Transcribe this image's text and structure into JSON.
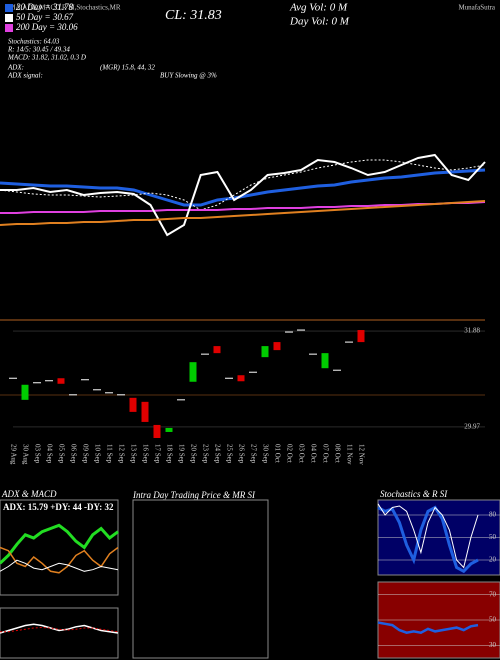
{
  "header": {
    "left": "EMA,ADX,MACD,R SI,Stochastics,MR",
    "right": "MunafaSutra"
  },
  "chart_data": [
    {
      "type": "line",
      "title": "CL: 31.83",
      "annotations": [
        "Stochastics: 64.03",
        "R: 14/5: 30.45 / 49.34",
        "MACD: 31.82, 31.02, 0.3 D",
        "ADX:",
        "(MGR) 15.8, 44, 32",
        "ADX signal:",
        "BUY Slowing @ 3%",
        "Avg Vol: 0 M",
        "Day Vol: 0 M"
      ],
      "ylim": [
        29.7,
        32.7
      ],
      "series": [
        {
          "name": "20 Day = 31.78",
          "color": "#1f5fe0",
          "width": 3,
          "values": [
            30.87,
            30.86,
            30.85,
            30.84,
            30.84,
            30.83,
            30.82,
            30.82,
            30.8,
            30.75,
            30.7,
            30.65,
            30.65,
            30.7,
            30.72,
            30.75,
            30.78,
            30.8,
            30.82,
            30.84,
            30.85,
            30.88,
            30.9,
            30.92,
            30.93,
            30.95,
            30.97,
            30.98,
            30.99,
            31.0
          ]
        },
        {
          "name": "50 Day = 30.67",
          "color": "#ffffff",
          "width": 1,
          "style": "dotted",
          "values": [
            30.8,
            30.78,
            30.76,
            30.75,
            30.75,
            30.74,
            30.73,
            30.74,
            30.75,
            30.77,
            30.75,
            30.7,
            30.6,
            30.65,
            30.75,
            30.85,
            30.92,
            30.95,
            30.98,
            31.02,
            31.05,
            31.08,
            31.1,
            31.1,
            31.08,
            31.05,
            31.02,
            31.0,
            31.02,
            31.05
          ]
        },
        {
          "name": "200 Day = 30.06",
          "color": "#e040e0",
          "width": 2,
          "values": [
            30.57,
            30.57,
            30.58,
            30.58,
            30.58,
            30.58,
            30.59,
            30.59,
            30.59,
            30.59,
            30.6,
            30.6,
            30.6,
            30.6,
            30.61,
            30.61,
            30.62,
            30.62,
            30.62,
            30.63,
            30.63,
            30.64,
            30.64,
            30.65,
            30.65,
            30.66,
            30.66,
            30.67,
            30.67,
            30.68
          ]
        },
        {
          "color": "#ffffff",
          "width": 2,
          "values": [
            30.8,
            30.8,
            30.82,
            30.78,
            30.8,
            30.75,
            30.77,
            30.78,
            30.76,
            30.65,
            30.35,
            30.45,
            30.95,
            30.98,
            30.7,
            30.8,
            30.95,
            30.97,
            31.0,
            31.1,
            31.08,
            31.02,
            30.95,
            30.98,
            31.05,
            31.12,
            31.15,
            30.95,
            30.9,
            31.08
          ]
        },
        {
          "color": "#e08020",
          "width": 2,
          "values": [
            30.45,
            30.46,
            30.46,
            30.47,
            30.47,
            30.48,
            30.48,
            30.49,
            30.5,
            30.5,
            30.51,
            30.52,
            30.52,
            30.53,
            30.54,
            30.55,
            30.56,
            30.57,
            30.58,
            30.59,
            30.6,
            30.61,
            30.62,
            30.63,
            30.64,
            30.65,
            30.66,
            30.67,
            30.68,
            30.69
          ]
        }
      ]
    },
    {
      "type": "candlestick",
      "ylim": [
        29.71,
        32.1
      ],
      "yticks": [
        29.97,
        31.88
      ],
      "up_color": "#00cc00",
      "down_color": "#e00000",
      "categories": [
        "29 Aug",
        "30 Aug",
        "03 Sep",
        "04 Sep",
        "05 Sep",
        "06 Sep",
        "09 Sep",
        "10 Sep",
        "11 Sep",
        "12 Sep",
        "13 Sep",
        "16 Sep",
        "17 Sep",
        "18 Sep",
        "19 Sep",
        "20 Sep",
        "23 Sep",
        "24 Sep",
        "25 Sep",
        "26 Sep",
        "27 Sep",
        "30 Sep",
        "01 Oct",
        "02 Oct",
        "03 Oct",
        "04 Oct",
        "07 Oct",
        "08 Oct",
        "11 Nov",
        "12 Nov"
      ],
      "open": [
        30.94,
        30.51,
        30.85,
        30.89,
        30.94,
        30.61,
        30.91,
        30.71,
        30.65,
        30.61,
        30.55,
        30.47,
        30.01,
        29.87,
        30.51,
        30.87,
        31.42,
        31.58,
        30.94,
        31.0,
        31.06,
        31.36,
        31.66,
        31.86,
        31.9,
        31.42,
        31.14,
        31.1,
        31.66,
        31.9
      ],
      "close": [
        30.94,
        30.81,
        30.85,
        30.89,
        30.83,
        30.61,
        30.91,
        30.71,
        30.65,
        30.61,
        30.27,
        30.07,
        29.75,
        29.95,
        30.51,
        31.26,
        31.42,
        31.44,
        30.94,
        30.88,
        31.06,
        31.58,
        31.5,
        31.86,
        31.9,
        31.42,
        31.44,
        31.1,
        31.66,
        31.66
      ]
    },
    {
      "type": "line",
      "title": "ADX & MACD",
      "label": "ADX: 15.79 +DY: 44 -DY: 32",
      "ylim": [
        0,
        60
      ],
      "series": [
        {
          "color": "#22dd22",
          "width": 3,
          "values": [
            20,
            25,
            32,
            38,
            36,
            40,
            42,
            44,
            40,
            34,
            30,
            38,
            42,
            36,
            40
          ]
        },
        {
          "color": "#e08020",
          "width": 1.5,
          "values": [
            30,
            28,
            20,
            18,
            24,
            20,
            15,
            14,
            18,
            25,
            28,
            22,
            18,
            26,
            30
          ]
        },
        {
          "color": "#ffffff",
          "width": 1,
          "values": [
            15,
            18,
            22,
            20,
            17,
            16,
            18,
            20,
            19,
            17,
            15,
            16,
            18,
            17,
            16
          ]
        }
      ]
    },
    {
      "type": "line",
      "ylim": [
        -1,
        1
      ],
      "series": [
        {
          "color": "#ffffff",
          "width": 1.5,
          "values": [
            0.0,
            0.1,
            0.2,
            0.3,
            0.35,
            0.3,
            0.2,
            0.1,
            0.15,
            0.25,
            0.3,
            0.2,
            0.1,
            0.05,
            0.0
          ]
        },
        {
          "color": "#e00000",
          "width": 1,
          "style": "dotted",
          "values": [
            0.05,
            0.05,
            0.1,
            0.15,
            0.2,
            0.22,
            0.2,
            0.15,
            0.12,
            0.15,
            0.2,
            0.2,
            0.15,
            0.1,
            0.05
          ]
        }
      ]
    },
    {
      "type": "line",
      "title": "Stochastics & R SI",
      "ylim": [
        0,
        100
      ],
      "yticks": [
        20,
        50,
        80
      ],
      "background": "#000066",
      "series": [
        {
          "color": "#1f5fe0",
          "width": 3,
          "values": [
            90,
            85,
            88,
            70,
            40,
            20,
            60,
            85,
            90,
            75,
            40,
            10,
            5,
            15,
            20
          ]
        },
        {
          "color": "#ffffff",
          "width": 1,
          "values": [
            95,
            80,
            90,
            92,
            85,
            60,
            30,
            70,
            90,
            80,
            60,
            20,
            10,
            50,
            80
          ]
        }
      ]
    },
    {
      "type": "line",
      "ylim": [
        20,
        80
      ],
      "yticks": [
        30,
        50,
        70
      ],
      "background": "#880000",
      "series": [
        {
          "color": "#1f5fe0",
          "width": 2.5,
          "values": [
            48,
            47,
            46,
            42,
            40,
            41,
            40,
            43,
            41,
            42,
            43,
            44,
            42,
            45,
            46
          ]
        }
      ]
    }
  ],
  "intraday": {
    "title": "Intra Day Trading Price & MR SI"
  }
}
